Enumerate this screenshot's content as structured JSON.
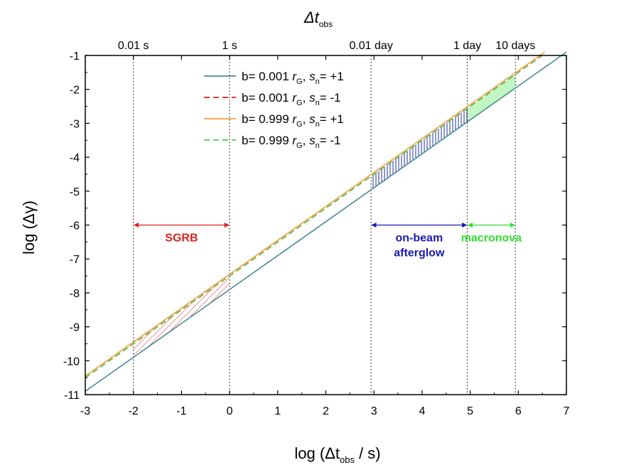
{
  "chart_data": {
    "type": "line",
    "title": "",
    "xlabel": "log (Δt",
    "xlabel_sub": "obs",
    "xlabel_tail": " / s)",
    "ylabel": "log (Δγ)",
    "top_axis_title": "Δt",
    "top_axis_title_sub": "obs",
    "xlim": [
      -3,
      7
    ],
    "ylim": [
      -11,
      -1
    ],
    "x_ticks": [
      -3,
      -2,
      -1,
      0,
      1,
      2,
      3,
      4,
      5,
      6,
      7
    ],
    "x_tick_labels": [
      "-3",
      "-2",
      "-1",
      "0",
      "1",
      "2",
      "3",
      "4",
      "5",
      "6",
      "7"
    ],
    "y_ticks": [
      -11,
      -10,
      -9,
      -8,
      -7,
      -6,
      -5,
      -4,
      -3,
      -2,
      -1
    ],
    "y_tick_labels": [
      "-11",
      "-10",
      "-9",
      "-8",
      "-7",
      "-6",
      "-5",
      "-4",
      "-3",
      "-2",
      "-1"
    ],
    "top_ticks": [
      {
        "x": -2,
        "label": "0.01 s"
      },
      {
        "x": 0,
        "label": "1 s"
      },
      {
        "x": 2.94,
        "label": "0.01 day"
      },
      {
        "x": 4.94,
        "label": "1 day"
      },
      {
        "x": 5.94,
        "label": "10 days"
      }
    ],
    "vlines": [
      -2,
      0,
      2.94,
      4.94,
      5.94
    ],
    "series": [
      {
        "name": "b= 0.001 r_G, s_n= +1",
        "legend_prefix": "b= 0.001 ",
        "legend_r": "r",
        "legend_rsub": "G",
        "legend_mid": ", ",
        "legend_s": "s",
        "legend_ssub": "n",
        "legend_val": "= +1",
        "color": "#4a8a94",
        "dash": "solid",
        "x": [
          -3,
          7
        ],
        "y": [
          -10.9,
          -0.9
        ]
      },
      {
        "name": "b= 0.001 r_G, s_n= -1",
        "legend_prefix": "b= 0.001 ",
        "legend_r": "r",
        "legend_rsub": "G",
        "legend_mid": ", ",
        "legend_s": "s",
        "legend_ssub": "n",
        "legend_val": "= -1",
        "color": "#e02020",
        "dash": "dashed",
        "x": [
          -3,
          6.5
        ],
        "y": [
          -10.5,
          -1.0
        ]
      },
      {
        "name": "b= 0.999 r_G, s_n= +1",
        "legend_prefix": "b= 0.999 ",
        "legend_r": "r",
        "legend_rsub": "G",
        "legend_mid": ", ",
        "legend_s": "s",
        "legend_ssub": "n",
        "legend_val": "= +1",
        "color": "#f0a040",
        "dash": "solid",
        "x": [
          -3,
          6.55
        ],
        "y": [
          -10.45,
          -0.9
        ]
      },
      {
        "name": "b= 0.999 r_G, s_n= -1",
        "legend_prefix": "b= 0.999 ",
        "legend_r": "r",
        "legend_rsub": "G",
        "legend_mid": ", ",
        "legend_s": "s",
        "legend_ssub": "n",
        "legend_val": "= -1",
        "color": "#50c850",
        "dash": "dashed",
        "x": [
          -3,
          6.5
        ],
        "y": [
          -10.5,
          -1.0
        ]
      }
    ],
    "shaded_regions": [
      {
        "name": "SGRB band",
        "x": [
          -2,
          0
        ],
        "lower_intercept": -7.9,
        "upper_intercept": -7.5,
        "color": "#e02020",
        "pattern": "hatch"
      },
      {
        "name": "afterglow band",
        "x": [
          2.94,
          4.94
        ],
        "lower_intercept": -7.9,
        "upper_intercept": -7.5,
        "color": "#2030a0",
        "pattern": "vertical-hatch"
      },
      {
        "name": "macronova band",
        "x": [
          4.94,
          5.94
        ],
        "lower_intercept": -7.9,
        "upper_intercept": -7.5,
        "color": "#90ee90",
        "pattern": "fill"
      }
    ],
    "annotations": [
      {
        "label": "SGRB",
        "x_from": -2,
        "x_to": 0,
        "y": -6,
        "color": "#e02020"
      },
      {
        "label": "on-beam",
        "label2": "afterglow",
        "x_from": 2.94,
        "x_to": 4.94,
        "y": -6,
        "color": "#1a1ab4"
      },
      {
        "label": "macronova",
        "x_from": 4.94,
        "x_to": 5.94,
        "y": -6,
        "color": "#30e030"
      }
    ],
    "legend_position": "top-center",
    "grid": false
  }
}
